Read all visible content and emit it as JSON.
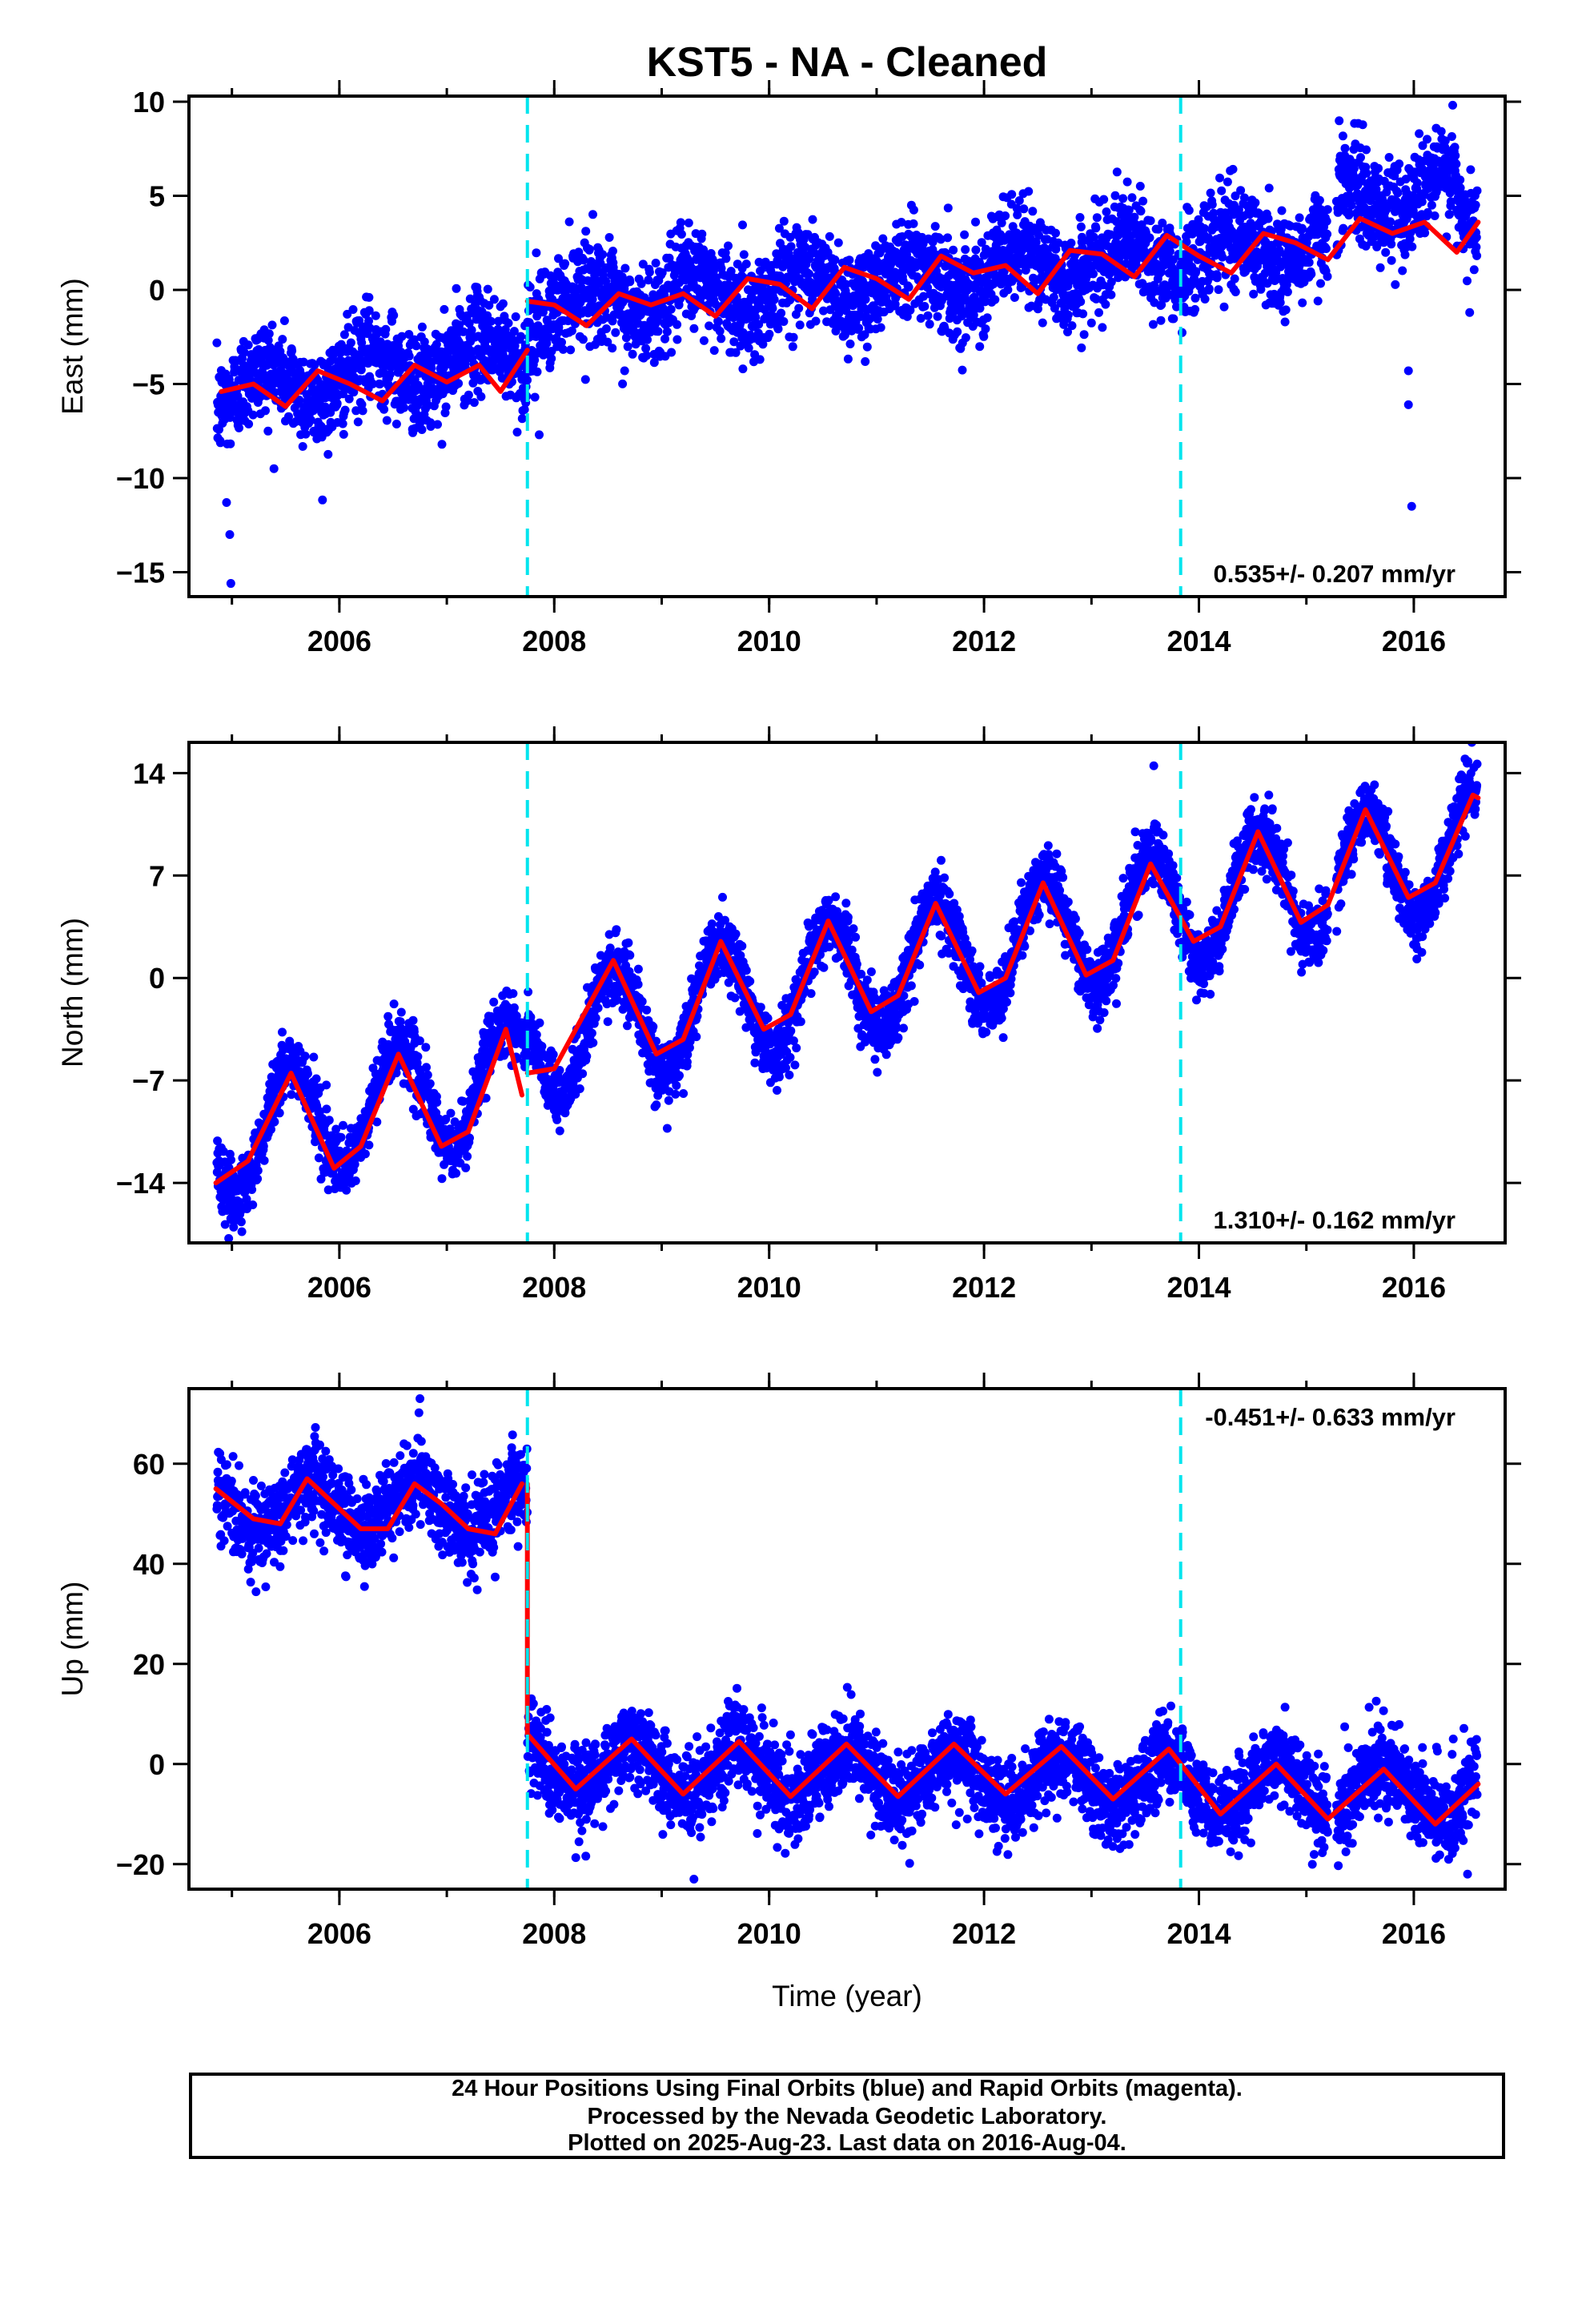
{
  "title": "KST5  - NA - Cleaned",
  "xlabel": "Time (year)",
  "footer": {
    "line1": "24 Hour Positions Using Final Orbits (blue) and Rapid Orbits (magenta).",
    "line2": "Processed by the Nevada Geodetic Laboratory.",
    "line3": "Plotted on 2025-Aug-23. Last data on 2016-Aug-04."
  },
  "colors": {
    "points": "#0000ff",
    "model": "#ff0000",
    "event_lines": "#00e5ee",
    "frame": "#000000"
  },
  "chart_data": [
    {
      "type": "scatter",
      "component": "East",
      "ylabel": "East (mm)",
      "xlim": [
        2004.6,
        2016.85
      ],
      "ylim": [
        -16.3,
        10.3
      ],
      "xticks": [
        2006,
        2008,
        2010,
        2012,
        2014,
        2016
      ],
      "xtick_labels": [
        "2006",
        "2008",
        "2010",
        "2012",
        "2014",
        "2016"
      ],
      "yticks": [
        -15,
        -10,
        -5,
        0,
        5,
        10
      ],
      "ytick_labels": [
        "−15",
        "−10",
        "−5",
        "0",
        "5",
        "10"
      ],
      "rate_label": "0.535+/- 0.207 mm/yr",
      "rate_position": "bottom-right",
      "event_lines_x": [
        2007.75,
        2013.83
      ],
      "step": {
        "x": 2007.75,
        "before": [
          2004.85,
          -5.5,
          2007.75,
          -3.3
        ],
        "after": [
          2007.75,
          -1.0,
          2016.6,
          3.2
        ]
      },
      "seasonal": {
        "amplitude": 1.0,
        "phase_year": 2006.3
      },
      "scatter_sd": 1.3,
      "outliers": [
        [
          2004.95,
          -11.3
        ],
        [
          2004.98,
          -13.0
        ],
        [
          2004.99,
          -15.6
        ],
        [
          2007.82,
          -5.7
        ],
        [
          2007.86,
          -7.7
        ],
        [
          2015.95,
          -4.3
        ],
        [
          2015.95,
          -6.1
        ],
        [
          2015.98,
          -11.5
        ],
        [
          2016.52,
          -1.2
        ]
      ],
      "model_segments": [
        {
          "x": [
            2004.9,
            2005.2,
            2005.5,
            2005.8,
            2006.1,
            2006.4,
            2006.7,
            2007.0,
            2007.3,
            2007.5,
            2007.75
          ],
          "y": [
            -5.4,
            -5.0,
            -6.2,
            -4.3,
            -5.0,
            -5.9,
            -4.0,
            -4.9,
            -4.0,
            -5.4,
            -3.2
          ]
        },
        {
          "x": [
            2007.75,
            2008.0,
            2008.3,
            2008.6,
            2008.9,
            2009.2,
            2009.5,
            2009.8,
            2010.1,
            2010.4,
            2010.7,
            2011.0,
            2011.3,
            2011.6,
            2011.9,
            2012.2,
            2012.5,
            2012.8,
            2013.1,
            2013.4,
            2013.7,
            2014.0,
            2014.3,
            2014.6,
            2014.9,
            2015.2,
            2015.5,
            2015.8,
            2016.1,
            2016.4,
            2016.6
          ],
          "y": [
            -0.6,
            -0.8,
            -1.9,
            -0.2,
            -0.8,
            -0.2,
            -1.4,
            0.6,
            0.3,
            -1.0,
            1.2,
            0.6,
            -0.5,
            1.8,
            0.9,
            1.3,
            -0.2,
            2.1,
            1.9,
            0.7,
            2.9,
            1.8,
            0.9,
            3.0,
            2.5,
            1.6,
            3.8,
            3.0,
            3.6,
            2.0,
            3.6
          ]
        }
      ]
    },
    {
      "type": "scatter",
      "component": "North",
      "ylabel": "North (mm)",
      "xlim": [
        2004.6,
        2016.85
      ],
      "ylim": [
        -18.1,
        16.1
      ],
      "xticks": [
        2006,
        2008,
        2010,
        2012,
        2014,
        2016
      ],
      "xtick_labels": [
        "2006",
        "2008",
        "2010",
        "2012",
        "2014",
        "2016"
      ],
      "yticks": [
        -14,
        -7,
        0,
        7,
        14
      ],
      "ytick_labels": [
        "−14",
        "−7",
        "0",
        "7",
        "14"
      ],
      "rate_label": "1.310+/- 0.162 mm/yr",
      "rate_position": "bottom-right",
      "event_lines_x": [
        2007.75,
        2013.83
      ],
      "step": {
        "x": 2007.75,
        "before": [
          2004.85,
          -11.0,
          2007.75,
          -6.5
        ],
        "after": [
          2007.75,
          -4.5,
          2016.6,
          9.0
        ]
      },
      "seasonal": {
        "amplitude": 4.0,
        "phase_year": 2005.55
      },
      "scatter_sd": 1.1,
      "outliers": [
        [
          2013.58,
          14.5
        ],
        [
          2004.97,
          -17.8
        ]
      ],
      "model_segments": [
        {
          "x": [
            2004.85,
            2005.15,
            2005.55,
            2005.95,
            2006.2,
            2006.55,
            2006.95,
            2007.2,
            2007.55,
            2007.7
          ],
          "y": [
            -14.0,
            -12.5,
            -6.5,
            -13.0,
            -11.5,
            -5.2,
            -11.5,
            -10.5,
            -3.5,
            -8.0
          ]
        },
        {
          "x": [
            2007.75,
            2008.0,
            2008.55,
            2008.95,
            2009.2,
            2009.55,
            2009.95,
            2010.2,
            2010.55,
            2010.95,
            2011.2,
            2011.55,
            2011.95,
            2012.2,
            2012.55,
            2012.95,
            2013.2,
            2013.55,
            2013.95,
            2014.2,
            2014.55,
            2014.95,
            2015.2,
            2015.55,
            2015.95,
            2016.2,
            2016.55,
            2016.6
          ],
          "y": [
            -6.5,
            -6.2,
            1.2,
            -5.2,
            -4.2,
            2.5,
            -3.5,
            -2.5,
            3.9,
            -2.3,
            -1.2,
            5.1,
            -1.0,
            0.0,
            6.5,
            0.2,
            1.2,
            7.8,
            2.5,
            3.5,
            10.0,
            3.8,
            5.0,
            11.5,
            5.5,
            6.5,
            12.5,
            12.3
          ]
        }
      ]
    },
    {
      "type": "scatter",
      "component": "Up",
      "ylabel": "Up (mm)",
      "xlim": [
        2004.6,
        2016.85
      ],
      "ylim": [
        -25.0,
        75.0
      ],
      "xticks": [
        2006,
        2008,
        2010,
        2012,
        2014,
        2016
      ],
      "xtick_labels": [
        "2006",
        "2008",
        "2010",
        "2012",
        "2014",
        "2016"
      ],
      "yticks": [
        -20,
        0,
        20,
        40,
        60
      ],
      "ytick_labels": [
        "−20",
        "0",
        "20",
        "40",
        "60"
      ],
      "rate_label": "-0.451+/- 0.633 mm/yr",
      "rate_position": "top-right",
      "event_lines_x": [
        2007.75,
        2013.83
      ],
      "step": {
        "x": 2007.75,
        "before": [
          2004.85,
          52.0,
          2007.75,
          51.0
        ],
        "after": [
          2007.75,
          0.0,
          2016.6,
          -6.0
        ]
      },
      "seasonal": {
        "amplitude": 5.0,
        "phase_year": 2005.72
      },
      "scatter_sd": 4.2,
      "outliers": [
        [
          2006.75,
          73.0
        ],
        [
          2009.3,
          -23.0
        ],
        [
          2016.5,
          -22.0
        ]
      ],
      "model_segments": [
        {
          "x": [
            2004.85,
            2005.2,
            2005.45,
            2005.7,
            2005.95,
            2006.2,
            2006.45,
            2006.7,
            2006.95,
            2007.2,
            2007.45,
            2007.7
          ],
          "y": [
            55.0,
            49.0,
            48.0,
            57.0,
            52.0,
            47.0,
            47.0,
            56.0,
            52.0,
            47.0,
            46.0,
            56.0
          ]
        },
        {
          "x": [
            2007.75,
            2007.75,
            2008.2,
            2008.72,
            2009.2,
            2009.72,
            2010.2,
            2010.72,
            2011.2,
            2011.72,
            2012.2,
            2012.72,
            2013.2,
            2013.72,
            2014.2,
            2014.72,
            2015.2,
            2015.72,
            2016.2,
            2016.6
          ],
          "y": [
            56.0,
            6.0,
            -5.0,
            5.0,
            -6.0,
            4.5,
            -6.5,
            4.0,
            -6.5,
            4.0,
            -6.0,
            3.5,
            -7.0,
            3.0,
            -10.0,
            0.0,
            -11.0,
            -1.0,
            -12.0,
            -4.0
          ]
        }
      ]
    }
  ]
}
